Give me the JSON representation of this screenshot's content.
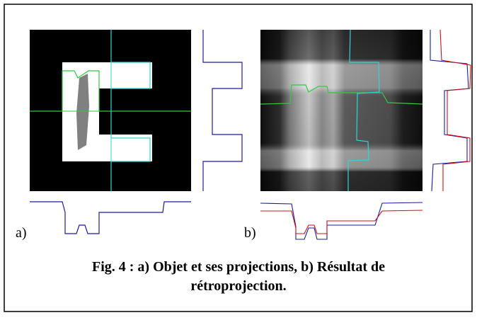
{
  "panels": [
    {
      "label": "a)"
    },
    {
      "label": "b)"
    }
  ],
  "caption": {
    "line1": "Fig. 4 : a) Objet et ses projections, b) Résultat de",
    "line2": "rétroprojection."
  }
}
